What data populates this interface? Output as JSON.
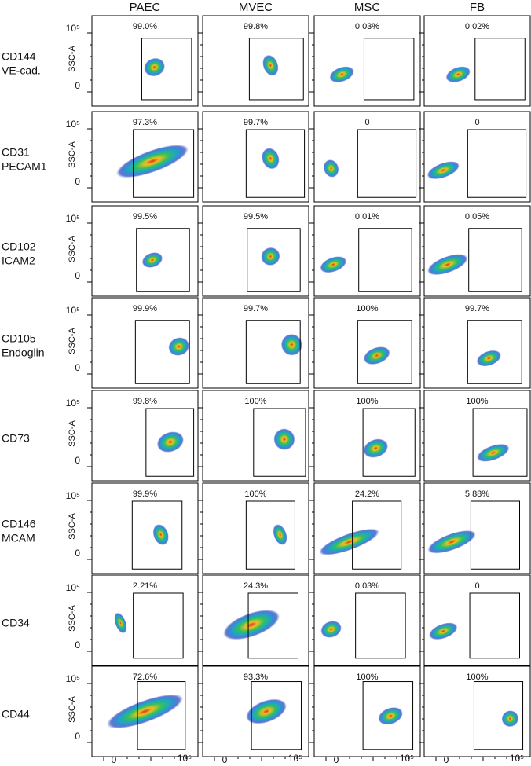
{
  "columns": [
    "PAEC",
    "MVEC",
    "MSC",
    "FB"
  ],
  "rows": [
    {
      "label": [
        "CD144",
        "VE-cad."
      ],
      "percentages": [
        "99.0%",
        "99.8%",
        "0.03%",
        "0.02%"
      ]
    },
    {
      "label": [
        "CD31",
        "PECAM1"
      ],
      "percentages": [
        "97.3%",
        "99.7%",
        "0",
        "0"
      ]
    },
    {
      "label": [
        "CD102",
        "ICAM2"
      ],
      "percentages": [
        "99.5%",
        "99.5%",
        "0.01%",
        "0.05%"
      ]
    },
    {
      "label": [
        "CD105",
        "Endoglin"
      ],
      "percentages": [
        "99.9%",
        "99.7%",
        "100%",
        "99.7%"
      ]
    },
    {
      "label": [
        "CD73"
      ],
      "percentages": [
        "99.8%",
        "100%",
        "100%",
        "100%"
      ]
    },
    {
      "label": [
        "CD146",
        "MCAM"
      ],
      "percentages": [
        "99.9%",
        "100%",
        "24.2%",
        "5.88%"
      ]
    },
    {
      "label": [
        "CD34"
      ],
      "percentages": [
        "2.21%",
        "24.3%",
        "0.03%",
        "0"
      ]
    },
    {
      "label": [
        "CD44"
      ],
      "percentages": [
        "72.6%",
        "93.3%",
        "100%",
        "100%"
      ]
    }
  ],
  "y_axis": {
    "title": "SSC-A",
    "ticks": [
      "0",
      "10⁵"
    ]
  },
  "x_axis": {
    "ticks": [
      "0",
      "10⁵"
    ]
  }
}
